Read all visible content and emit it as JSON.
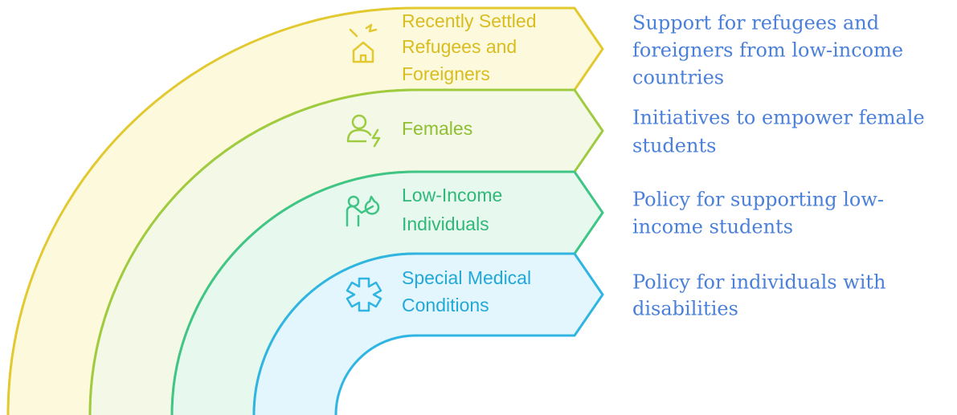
{
  "bands": [
    {
      "label": [
        "Recently Settled",
        "Refugees and",
        "Foreigners"
      ],
      "description": [
        "Support for refugees and",
        "foreigners from low-income",
        "countries"
      ]
    },
    {
      "label": [
        "Females"
      ],
      "description": [
        "Initiatives to empower female",
        "students"
      ]
    },
    {
      "label": [
        "Low-Income",
        "Individuals"
      ],
      "description": [
        "Policy for supporting low-",
        "income students"
      ]
    },
    {
      "label": [
        "Special Medical",
        "Conditions"
      ],
      "description": [
        "Policy for individuals with",
        "disabilities"
      ]
    }
  ]
}
